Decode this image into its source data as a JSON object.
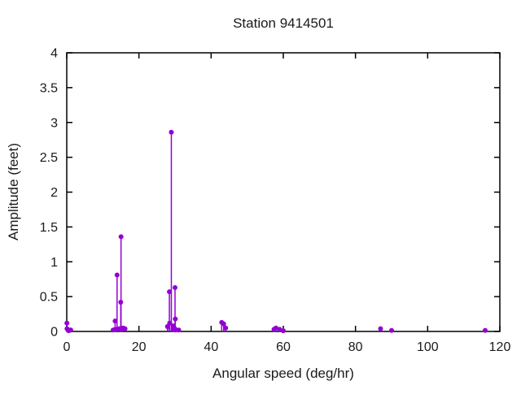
{
  "title": "Station 9414501",
  "chart_data": {
    "type": "scatter",
    "subtype": "stem",
    "title": "Station 9414501",
    "xlabel": "Angular speed (deg/hr)",
    "ylabel": "Amplitude (feet)",
    "xlim": [
      0,
      120
    ],
    "ylim": [
      0,
      4
    ],
    "xticks": [
      0,
      20,
      40,
      60,
      80,
      100,
      120
    ],
    "yticks": [
      0,
      0.5,
      1,
      1.5,
      2,
      2.5,
      3,
      3.5,
      4
    ],
    "grid": false,
    "legend": "none",
    "marker_color": "#9400D3",
    "border_color": "#000000",
    "points": [
      {
        "x": 0.04,
        "y": 0.12
      },
      {
        "x": 0.08,
        "y": 0.04
      },
      {
        "x": 0.54,
        "y": 0.01
      },
      {
        "x": 1.02,
        "y": 0.02
      },
      {
        "x": 1.1,
        "y": 0.02
      },
      {
        "x": 12.85,
        "y": 0.02
      },
      {
        "x": 13.4,
        "y": 0.15
      },
      {
        "x": 13.47,
        "y": 0.03
      },
      {
        "x": 13.94,
        "y": 0.81
      },
      {
        "x": 14.5,
        "y": 0.04
      },
      {
        "x": 14.96,
        "y": 0.42
      },
      {
        "x": 15.0,
        "y": 0.03
      },
      {
        "x": 15.04,
        "y": 1.36
      },
      {
        "x": 15.59,
        "y": 0.05
      },
      {
        "x": 16.14,
        "y": 0.04
      },
      {
        "x": 27.9,
        "y": 0.07
      },
      {
        "x": 27.97,
        "y": 0.07
      },
      {
        "x": 28.44,
        "y": 0.57
      },
      {
        "x": 28.51,
        "y": 0.12
      },
      {
        "x": 28.98,
        "y": 2.86
      },
      {
        "x": 29.46,
        "y": 0.03
      },
      {
        "x": 29.53,
        "y": 0.08
      },
      {
        "x": 29.96,
        "y": 0.04
      },
      {
        "x": 30.0,
        "y": 0.63
      },
      {
        "x": 30.04,
        "y": 0.02
      },
      {
        "x": 30.08,
        "y": 0.18
      },
      {
        "x": 31.02,
        "y": 0.02
      },
      {
        "x": 42.93,
        "y": 0.13
      },
      {
        "x": 43.48,
        "y": 0.11
      },
      {
        "x": 44.03,
        "y": 0.05
      },
      {
        "x": 57.42,
        "y": 0.03
      },
      {
        "x": 57.97,
        "y": 0.05
      },
      {
        "x": 58.98,
        "y": 0.03
      },
      {
        "x": 60.0,
        "y": 0.01
      },
      {
        "x": 86.95,
        "y": 0.04
      },
      {
        "x": 90.0,
        "y": 0.015
      },
      {
        "x": 115.94,
        "y": 0.015
      }
    ]
  }
}
